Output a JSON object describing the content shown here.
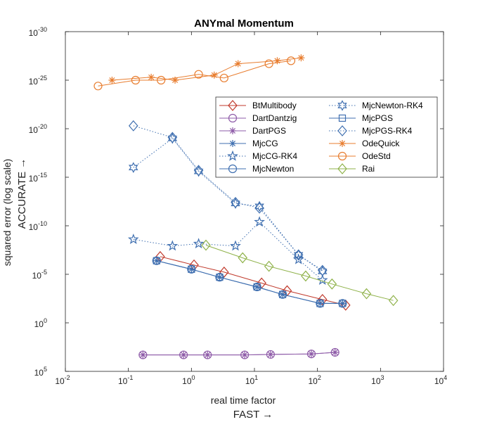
{
  "chart_data": {
    "type": "line",
    "title": "ANYmal Momentum",
    "xlabel_line1": "real time factor",
    "xlabel_line2": "FAST →",
    "ylabel_line1": "squared error (log scale)",
    "ylabel_line2": "ACCURATE →",
    "x_scale": "log",
    "y_scale": "log",
    "y_reversed": true,
    "xlim": [
      0.01,
      10000
    ],
    "ylim": [
      100000.0,
      1e-30
    ],
    "x_ticks": [
      {
        "value": 0.01,
        "base": "10",
        "exp": "-2"
      },
      {
        "value": 0.1,
        "base": "10",
        "exp": "-1"
      },
      {
        "value": 1,
        "base": "10",
        "exp": "0"
      },
      {
        "value": 10,
        "base": "10",
        "exp": "1"
      },
      {
        "value": 100,
        "base": "10",
        "exp": "2"
      },
      {
        "value": 1000,
        "base": "10",
        "exp": "3"
      },
      {
        "value": 10000,
        "base": "10",
        "exp": "4"
      }
    ],
    "y_ticks": [
      {
        "value": 1e-30,
        "base": "10",
        "exp": "-30"
      },
      {
        "value": 1e-25,
        "base": "10",
        "exp": "-25"
      },
      {
        "value": 1e-20,
        "base": "10",
        "exp": "-20"
      },
      {
        "value": 1e-15,
        "base": "10",
        "exp": "-15"
      },
      {
        "value": 1e-10,
        "base": "10",
        "exp": "-10"
      },
      {
        "value": 1e-05,
        "base": "10",
        "exp": "-5"
      },
      {
        "value": 1,
        "base": "10",
        "exp": "0"
      },
      {
        "value": 100000.0,
        "base": "10",
        "exp": "5"
      }
    ],
    "grid": false,
    "legend_position": "inside upper right",
    "series": [
      {
        "name": "BtMultibody",
        "color": "#c0392b",
        "marker": "diamond",
        "dashed": false,
        "x": [
          0.32,
          1.1,
          3.3,
          13,
          33,
          120,
          280
        ],
        "y": [
          1.5e-07,
          1.1e-06,
          6e-06,
          8e-05,
          0.0005,
          0.004,
          0.015
        ]
      },
      {
        "name": "DartDantzig",
        "color": "#8e5ba8",
        "marker": "circle",
        "dashed": false,
        "x": [
          0.17,
          0.75,
          1.8,
          7,
          18,
          80,
          190
        ],
        "y": [
          2000.0,
          2000.0,
          2000.0,
          2000.0,
          1800.0,
          1600.0,
          1100.0
        ]
      },
      {
        "name": "DartPGS",
        "color": "#8e5ba8",
        "marker": "asterisk",
        "dashed": false,
        "x": [
          0.17,
          0.75,
          1.8,
          7,
          18,
          80,
          190
        ],
        "y": [
          2000.0,
          2000.0,
          2000.0,
          2000.0,
          1800.0,
          1600.0,
          1100.0
        ]
      },
      {
        "name": "MjcCG",
        "color": "#3f6fb0",
        "marker": "asterisk",
        "dashed": false,
        "x": [
          0.28,
          1,
          2.8,
          11,
          28,
          110,
          250
        ],
        "y": [
          4e-07,
          3e-06,
          2e-05,
          0.0002,
          0.0012,
          0.01,
          0.01
        ]
      },
      {
        "name": "MjcCG-RK4",
        "color": "#3f6fb0",
        "marker": "star",
        "dashed": true,
        "x": [
          0.12,
          0.5,
          1.3,
          5,
          12,
          50,
          120
        ],
        "y": [
          2.5e-09,
          1.2e-08,
          7e-09,
          1.2e-08,
          4e-11,
          3e-07,
          4e-05
        ]
      },
      {
        "name": "MjcNewton",
        "color": "#3f6fb0",
        "marker": "circle",
        "dashed": false,
        "x": [
          0.28,
          1,
          2.8,
          11,
          28,
          110,
          250
        ],
        "y": [
          4e-07,
          3e-06,
          2e-05,
          0.0002,
          0.0012,
          0.01,
          0.01
        ]
      },
      {
        "name": "MjcNewton-RK4",
        "color": "#3f6fb0",
        "marker": "hexagram",
        "dashed": true,
        "x": [
          0.12,
          0.5,
          1.3,
          5,
          12,
          50,
          120
        ],
        "y": [
          1e-16,
          1e-19,
          2.5e-16,
          5e-13,
          1e-12,
          1e-07,
          5e-06
        ]
      },
      {
        "name": "MjcPGS",
        "color": "#3f6fb0",
        "marker": "square",
        "dashed": false,
        "x": [
          0.28,
          1,
          2.8,
          11,
          28,
          110,
          250
        ],
        "y": [
          4e-07,
          3e-06,
          2e-05,
          0.0002,
          0.0012,
          0.01,
          0.01
        ]
      },
      {
        "name": "MjcPGS-RK4",
        "color": "#3f6fb0",
        "marker": "diamond",
        "dashed": true,
        "x": [
          0.12,
          0.5,
          1.3,
          5,
          12,
          50,
          120
        ],
        "y": [
          5e-21,
          8e-20,
          2e-16,
          4e-13,
          1.5e-12,
          1e-07,
          4e-06
        ]
      },
      {
        "name": "OdeQuick",
        "color": "#e87d2f",
        "marker": "asterisk",
        "dashed": false,
        "x": [
          0.055,
          0.23,
          0.55,
          2.3,
          5.5,
          23,
          55
        ],
        "y": [
          1e-25,
          5e-26,
          1e-25,
          3e-26,
          2e-27,
          1e-27,
          5e-28
        ]
      },
      {
        "name": "OdeStd",
        "color": "#e87d2f",
        "marker": "circle",
        "dashed": false,
        "x": [
          0.033,
          0.13,
          0.33,
          1.3,
          3.3,
          17,
          38
        ],
        "y": [
          4e-25,
          1e-25,
          1e-25,
          2.5e-26,
          6e-26,
          2e-27,
          1e-27
        ]
      },
      {
        "name": "Rai",
        "color": "#8fb24a",
        "marker": "diamond",
        "dashed": false,
        "x": [
          1.7,
          6.5,
          17,
          65,
          170,
          600,
          1600
        ],
        "y": [
          1e-08,
          2e-07,
          1.5e-06,
          1.5e-05,
          0.0001,
          0.001,
          0.005
        ]
      }
    ]
  }
}
